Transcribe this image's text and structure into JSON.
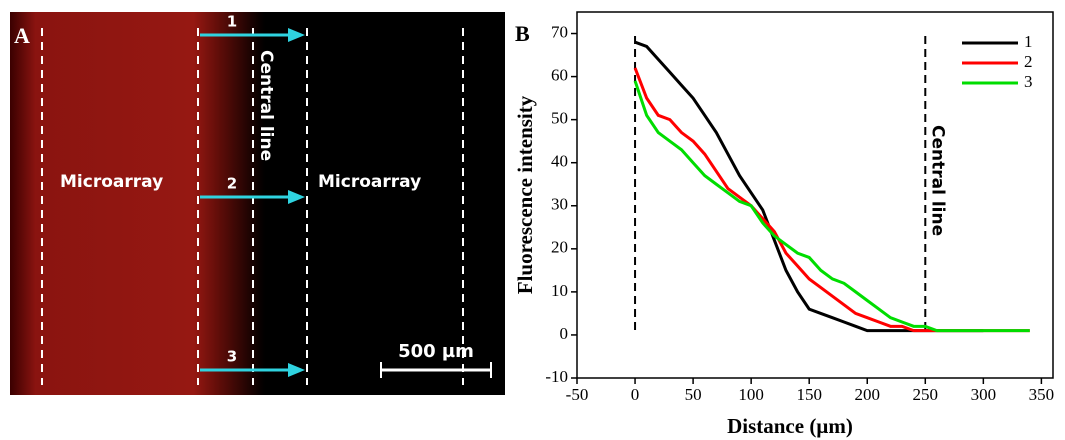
{
  "panel_a": {
    "label": "A",
    "left_region": "Microarray",
    "right_region": "Microarray",
    "center": "Central line",
    "arrows": [
      "1",
      "2",
      "3"
    ],
    "scale_bar": "500 µm"
  },
  "chart_data": {
    "type": "line",
    "panel_label": "B",
    "x_label": "Distance (µm)",
    "y_label": "Fluorescence intensity",
    "annotation": "Central line",
    "vlines": [
      0,
      250
    ],
    "x": [
      0,
      10,
      20,
      30,
      40,
      50,
      60,
      70,
      80,
      90,
      100,
      110,
      120,
      130,
      140,
      150,
      160,
      170,
      180,
      190,
      200,
      210,
      220,
      230,
      240,
      250,
      260,
      270,
      280,
      290,
      300,
      310,
      320,
      330,
      340
    ],
    "series": [
      {
        "name": "1",
        "color": "#000000",
        "values": [
          68,
          67,
          64,
          61,
          58,
          55,
          51,
          47,
          42,
          37,
          33,
          29,
          22,
          15,
          10,
          6,
          5,
          4,
          3,
          2,
          1,
          1,
          1,
          1,
          1,
          1,
          1,
          1,
          1,
          1,
          1,
          null,
          null,
          null,
          null
        ]
      },
      {
        "name": "2",
        "color": "#ff0000",
        "values": [
          62,
          55,
          51,
          50,
          47,
          45,
          42,
          38,
          34,
          32,
          30,
          27,
          24,
          19,
          16,
          13,
          11,
          9,
          7,
          5,
          4,
          3,
          2,
          2,
          1,
          1,
          1,
          1,
          1,
          1,
          1,
          1,
          1,
          1,
          1
        ]
      },
      {
        "name": "3",
        "color": "#00dd00",
        "values": [
          59,
          51,
          47,
          45,
          43,
          40,
          37,
          35,
          33,
          31,
          30,
          26,
          23,
          21,
          19,
          18,
          15,
          13,
          12,
          10,
          8,
          6,
          4,
          3,
          2,
          2,
          1,
          1,
          1,
          1,
          1,
          1,
          1,
          1,
          1
        ]
      }
    ],
    "xlim": [
      -50,
      360
    ],
    "ylim": [
      -10,
      75
    ],
    "xticks": [
      -50,
      0,
      50,
      100,
      150,
      200,
      250,
      300,
      350
    ],
    "yticks": [
      -10,
      0,
      10,
      20,
      30,
      40,
      50,
      60,
      70
    ],
    "legend": "upper right"
  }
}
